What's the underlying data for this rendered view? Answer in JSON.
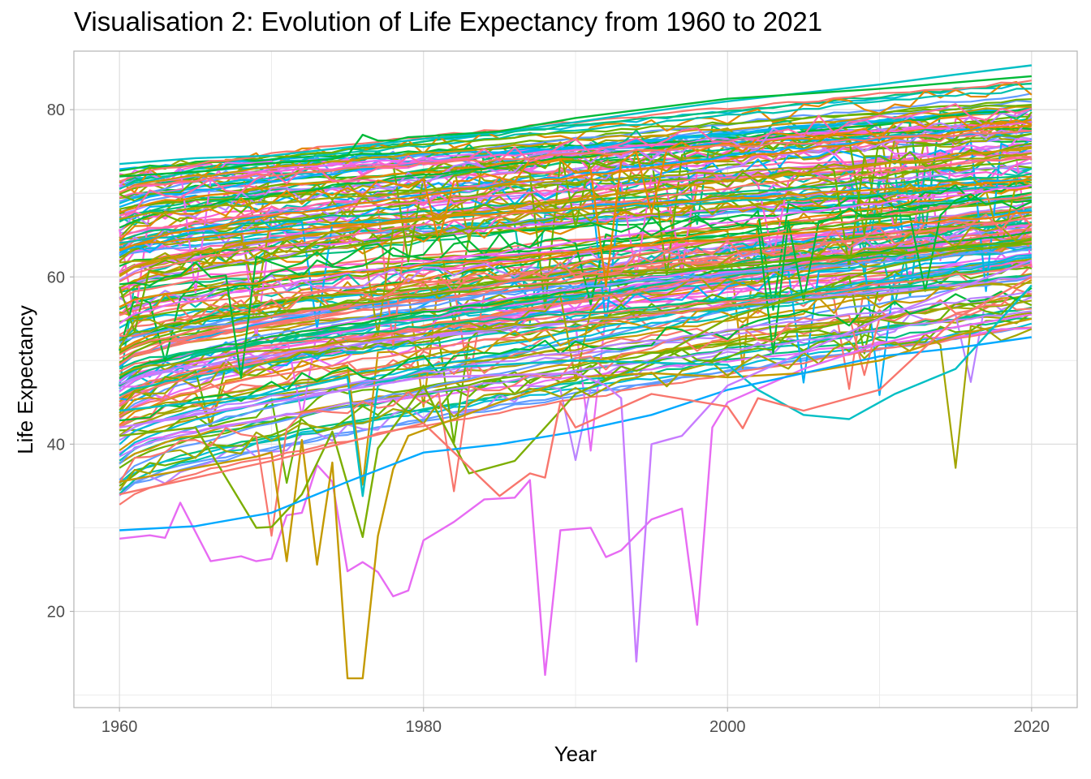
{
  "chart_data": {
    "type": "line",
    "title": "Visualisation 2: Evolution of Life Expectancy from 1960 to 2021",
    "xlabel": "Year",
    "ylabel": "Life Expectancy",
    "xlim": [
      1957,
      2023
    ],
    "ylim": [
      8.5,
      87
    ],
    "x_ticks": [
      1960,
      1980,
      2000,
      2020
    ],
    "y_ticks": [
      20,
      40,
      60,
      80
    ],
    "x_tick_labels": [
      "1960",
      "1980",
      "2000",
      "2020"
    ],
    "y_tick_labels": [
      "20",
      "40",
      "60",
      "80"
    ],
    "grid": true,
    "legend": "none",
    "palette": [
      "#F8766D",
      "#E58700",
      "#C99800",
      "#A3A500",
      "#6BB100",
      "#00BA38",
      "#00BF7D",
      "#00C0AF",
      "#00BCD8",
      "#00B0F6",
      "#619CFF",
      "#B983FF",
      "#E76BF3",
      "#FD61D1",
      "#FF67A4"
    ],
    "background_series_count": 200,
    "highlight_series": [
      {
        "color": "#00BFC4",
        "x": [
          1960,
          1965,
          1970,
          1975,
          1980,
          1985,
          1990,
          1995,
          2000,
          2005,
          2010,
          2015,
          2020
        ],
        "y": [
          73.5,
          74.2,
          74.5,
          75.5,
          76.5,
          77.3,
          78.5,
          79.8,
          81.0,
          82.0,
          83.0,
          84.2,
          85.3
        ]
      },
      {
        "color": "#E76BF3",
        "x": [
          1960,
          1962,
          1963,
          1964,
          1965,
          1966,
          1968,
          1969,
          1970,
          1971,
          1972,
          1973,
          1974,
          1975,
          1976,
          1977,
          1978,
          1979,
          1980,
          1982,
          1984,
          1986,
          1987,
          1988,
          1989,
          1991,
          1992,
          1993,
          1995,
          1997,
          1998,
          1999,
          2000,
          2005,
          2010,
          2015,
          2020
        ],
        "y": [
          28.7,
          29.1,
          28.8,
          33.0,
          29.5,
          26.0,
          26.6,
          26.0,
          26.3,
          31.5,
          31.8,
          37.5,
          35.5,
          24.8,
          25.9,
          24.7,
          21.8,
          22.5,
          28.5,
          30.7,
          33.4,
          33.6,
          35.7,
          12.4,
          29.7,
          30.0,
          26.5,
          27.3,
          31.0,
          32.3,
          18.4,
          42.0,
          45.0,
          49.0,
          52.0,
          54.0,
          55.5
        ]
      },
      {
        "color": "#C49A00",
        "x": [
          1960,
          1966,
          1969,
          1970,
          1971,
          1972,
          1973,
          1974,
          1975,
          1976,
          1977,
          1978,
          1979,
          1982,
          1985,
          1990,
          1995,
          2000,
          2005,
          2010,
          2015,
          2020
        ],
        "y": [
          35.5,
          37.5,
          38.5,
          39.0,
          26.0,
          40.5,
          25.6,
          37.8,
          12.0,
          12.0,
          29.0,
          37.0,
          41.0,
          43.0,
          45.0,
          48.0,
          48.5,
          48.0,
          48.5,
          50.0,
          53.0,
          55.0
        ]
      },
      {
        "color": "#7CAE00",
        "x": [
          1960,
          1965,
          1969,
          1970,
          1972,
          1974,
          1976,
          1977,
          1980,
          1983,
          1986,
          1990,
          1995,
          2000,
          2005,
          2010,
          2015,
          2020
        ],
        "y": [
          41.0,
          42.0,
          30.0,
          30.1,
          34.0,
          41.5,
          28.9,
          39.5,
          47.0,
          36.5,
          38.0,
          46.0,
          50.0,
          55.0,
          58.0,
          61.0,
          63.0,
          64.0
        ]
      },
      {
        "color": "#00BFC4",
        "x": [
          1960,
          1970,
          1975,
          1976,
          1977,
          1980,
          1990,
          2000,
          2002,
          2005,
          2008,
          2010,
          2011,
          2015,
          2020
        ],
        "y": [
          44.0,
          46.0,
          48.0,
          33.8,
          47.0,
          49.0,
          50.0,
          49.5,
          46.5,
          43.5,
          43.0,
          45.0,
          46.0,
          49.0,
          59.0
        ]
      },
      {
        "color": "#00A9FF",
        "x": [
          1960,
          1965,
          1970,
          1975,
          1980,
          1985,
          1990,
          1995,
          2000,
          2005,
          2010,
          2015,
          2020
        ],
        "y": [
          29.7,
          30.2,
          31.8,
          35.5,
          39.0,
          40.0,
          41.5,
          43.5,
          46.5,
          48.5,
          50.5,
          51.5,
          52.8
        ]
      },
      {
        "color": "#C77CFF",
        "x": [
          1960,
          1970,
          1980,
          1990,
          1992,
          1993,
          1994,
          1995,
          1996,
          1997,
          2000,
          2010,
          2020
        ],
        "y": [
          42.0,
          45.0,
          48.0,
          48.5,
          47.0,
          45.5,
          14.0,
          40.0,
          40.5,
          41.0,
          47.0,
          55.0,
          62.0
        ]
      },
      {
        "color": "#00BA38",
        "x": [
          1960,
          1966,
          1969,
          1972,
          1974,
          1975,
          1976,
          1977,
          1978,
          1979,
          1980,
          1985,
          1990,
          2000,
          2010,
          2020
        ],
        "y": [
          72.0,
          72.7,
          73.5,
          73.8,
          74.1,
          74.5,
          77.0,
          76.3,
          76.3,
          76.7,
          76.8,
          77.4,
          79.0,
          81.3,
          82.5,
          84.0
        ]
      },
      {
        "color": "#F8766D",
        "x": [
          1960,
          1970,
          1980,
          1985,
          1987,
          1988,
          1989,
          1990,
          1995,
          2000,
          2001,
          2002,
          2005,
          2010,
          2015,
          2020
        ],
        "y": [
          34.0,
          38.0,
          42.5,
          33.8,
          36.5,
          36.0,
          45.0,
          42.0,
          46.0,
          44.5,
          41.9,
          45.5,
          44.0,
          46.5,
          55.0,
          60.0
        ]
      }
    ]
  }
}
